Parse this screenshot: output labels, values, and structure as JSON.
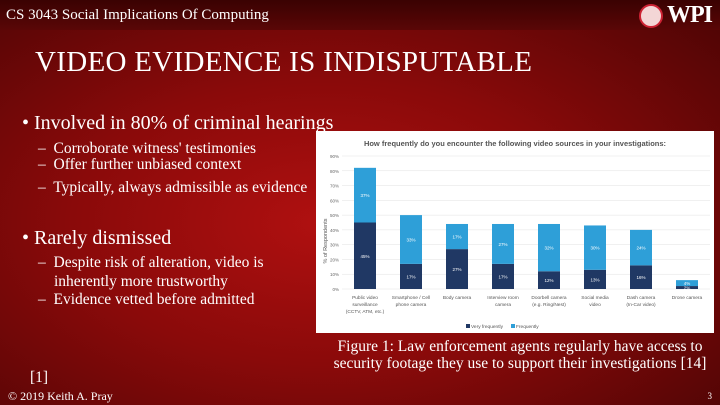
{
  "header": {
    "course": "CS 3043 Social Implications Of Computing",
    "logo_text": "WPI"
  },
  "slide": {
    "title": "VIDEO EVIDENCE IS INDISPUTABLE",
    "bullets": [
      {
        "text": "Involved in 80% of criminal hearings",
        "subs": [
          "Corroborate witness' testimonies",
          "Offer further unbiased context",
          "Typically, always admissible as evidence"
        ]
      },
      {
        "text": "Rarely dismissed",
        "subs": [
          "Despite risk of alteration, video is inherently more trustworthy",
          "Evidence vetted before admitted"
        ]
      }
    ],
    "caption": "Figure 1: Law enforcement agents regularly have access to security footage they use to support their investigations [14]",
    "ref": "[1]",
    "copyright": "© 2019 Keith A. Pray",
    "page": "3"
  },
  "chart_data": {
    "type": "bar",
    "stacked": true,
    "title": "How frequently do you encounter the following video sources in your investigations:",
    "xlabel": "",
    "ylabel": "% of Respondents",
    "ylim": [
      0,
      90
    ],
    "yticks": [
      "0%",
      "10%",
      "20%",
      "30%",
      "40%",
      "50%",
      "60%",
      "70%",
      "80%",
      "90%"
    ],
    "categories": [
      "Public video surveillance (CCTV, ATM, etc.)",
      "Smartphone / Cell phone camera",
      "Body camera",
      "Interview room camera",
      "Doorbell camera (e.g. Ring/Nest)",
      "Social media video",
      "Dash camera (In-Car video)",
      "Drone camera"
    ],
    "series": [
      {
        "name": "Very frequently",
        "color": "#203864",
        "values": [
          45,
          17,
          27,
          17,
          12,
          13,
          16,
          2
        ]
      },
      {
        "name": "Frequently",
        "color": "#2e9fd8",
        "values": [
          37,
          33,
          17,
          27,
          32,
          30,
          24,
          4
        ]
      }
    ],
    "legend": "bottom",
    "grid": true
  }
}
